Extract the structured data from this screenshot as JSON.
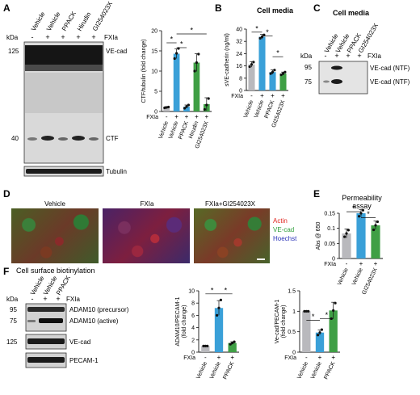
{
  "panels": {
    "A": {
      "letter": "A",
      "blot_lanes": [
        "Vehicle",
        "Vehicle",
        "PPACK",
        "Hirudin",
        "GI254023X"
      ],
      "kda_label": "kDa",
      "fxia_label": "FXIa",
      "fxia_signs": [
        "-",
        "+",
        "+",
        "+",
        "+"
      ],
      "markers": [
        "125",
        "40"
      ],
      "band_labels": [
        "VE-cad",
        "CTF",
        "Tubulin"
      ],
      "chart_data": {
        "type": "bar",
        "ylabel": "CTF/tubulin (fold change)",
        "ylim": [
          0,
          20
        ],
        "yticks": [
          "0",
          "5",
          "10",
          "15",
          "20"
        ],
        "categories": [
          "Vehicle",
          "Vehicle",
          "PPACK",
          "Hirudin",
          "GI254023X"
        ],
        "values": [
          1,
          14.3,
          1.2,
          12.1,
          1.8
        ],
        "errors": [
          0.2,
          1.2,
          0.4,
          2.2,
          1.6
        ],
        "points": [
          [
            0.9,
            1.0,
            1.1
          ],
          [
            13.1,
            14.4,
            15.6
          ],
          [
            0.8,
            1.2,
            1.6
          ],
          [
            10.0,
            12.1,
            14.2
          ],
          [
            0.5,
            1.6,
            3.2
          ]
        ],
        "colors": [
          "#b9b9bd",
          "#3aa0d8",
          "#3aa0d8",
          "#3f9f45",
          "#3f9f45"
        ],
        "fxia_signs": [
          "-",
          "+",
          "+",
          "+",
          "+"
        ],
        "significance": [
          "*",
          "*",
          "*"
        ]
      }
    },
    "B": {
      "letter": "B",
      "title": "Cell media",
      "fxia_label": "FXIa",
      "chart_data": {
        "type": "bar",
        "ylabel": "sVE-cadherin (ng/ml)",
        "ylim": [
          0,
          40
        ],
        "yticks": [
          "0",
          "8",
          "16",
          "24",
          "32",
          "40"
        ],
        "categories": [
          "Vehicle",
          "Vehicle",
          "PPACK",
          "GI254023X"
        ],
        "values": [
          17,
          35,
          12,
          11
        ],
        "errors": [
          1.8,
          1.5,
          1.4,
          1.0
        ],
        "points": [
          [
            15.5,
            17,
            18.5
          ],
          [
            34,
            35,
            36.2
          ],
          [
            11,
            12,
            13.3
          ],
          [
            10.2,
            11,
            12
          ]
        ],
        "colors": [
          "#b9b9bd",
          "#3aa0d8",
          "#3aa0d8",
          "#3f9f45"
        ],
        "fxia_signs": [
          "-",
          "+",
          "+",
          "+"
        ],
        "significance": [
          "*",
          "*"
        ]
      }
    },
    "C": {
      "letter": "C",
      "title": "Cell media",
      "kda_label": "kDa",
      "fxia_label": "FXIa",
      "blot_lanes": [
        "Vehicle",
        "Vehicle",
        "PPACK",
        "GI254023X"
      ],
      "fxia_signs": [
        "-",
        "+",
        "+",
        "+"
      ],
      "markers": [
        "95",
        "75"
      ],
      "band_labels": [
        "VE-cad (NTF)",
        "VE-cad (NTF)"
      ]
    },
    "D": {
      "letter": "D",
      "image_titles": [
        "Vehicle",
        "FXIa",
        "FXIa+GI254023X"
      ],
      "legend": [
        "Actin",
        "VE-cad",
        "Hoechst"
      ],
      "legend_colors": [
        "#e0251f",
        "#2f9e3b",
        "#2b33b8"
      ]
    },
    "E": {
      "letter": "E",
      "title": "Permeability assay",
      "fxia_label": "FXIa",
      "chart_data": {
        "type": "bar",
        "ylabel": "Abs @ 650",
        "ylim": [
          0,
          0.15
        ],
        "yticks": [
          "0",
          "0.05",
          "0.1",
          "0.15"
        ],
        "categories": [
          "Vehicle",
          "Vehicle",
          "GI254023X"
        ],
        "values": [
          0.083,
          0.15,
          0.11
        ],
        "errors": [
          0.015,
          0.012,
          0.014
        ],
        "points": [
          [
            0.072,
            0.083,
            0.094
          ],
          [
            0.14,
            0.15,
            0.16
          ],
          [
            0.095,
            0.11,
            0.122
          ]
        ],
        "colors": [
          "#b9b9bd",
          "#3aa0d8",
          "#3f9f45"
        ],
        "fxia_signs": [
          "-",
          "+",
          "+"
        ],
        "significance": [
          "*",
          "*"
        ]
      }
    },
    "F": {
      "letter": "F",
      "title": "Cell surface biotinylation",
      "kda_label": "kDa",
      "fxia_label": "FXIa",
      "blot_lanes": [
        "Vehicle",
        "Vehicle",
        "PPACK"
      ],
      "fxia_signs": [
        "-",
        "+",
        "+"
      ],
      "markers": [
        "95",
        "75",
        "125"
      ],
      "band_labels": [
        "ADAM10 (precursor)",
        "ADAM10 (active)",
        "VE-cad",
        "PECAM-1"
      ],
      "charts": [
        {
          "type": "bar",
          "ylabel": "ADAM10/PECAM-1 (fold change)",
          "ylim": [
            0,
            10
          ],
          "yticks": [
            "0",
            "2",
            "4",
            "6",
            "8",
            "10"
          ],
          "categories": [
            "Vehicle",
            "Vehicle",
            "PPACK"
          ],
          "values": [
            1,
            7.2,
            1.5
          ],
          "errors": [
            0.05,
            1.2,
            0.2
          ],
          "points": [
            [
              1,
              1,
              1
            ],
            [
              6.0,
              7.2,
              8.5
            ],
            [
              1.3,
              1.5,
              1.7
            ]
          ],
          "colors": [
            "#b9b9bd",
            "#3aa0d8",
            "#3f9f45"
          ],
          "fxia_signs": [
            "-",
            "+",
            "+"
          ],
          "significance": [
            "*",
            "*"
          ]
        },
        {
          "type": "bar",
          "ylabel": "Ve-cad/PECAM-1 (fold change)",
          "ylim": [
            0,
            1.5
          ],
          "yticks": [
            "0",
            "0.5",
            "1",
            "1.5"
          ],
          "categories": [
            "Vehicle",
            "Vehicle",
            "PPACK"
          ],
          "values": [
            1,
            0.48,
            1.02
          ],
          "errors": [
            0.01,
            0.06,
            0.2
          ],
          "points": [
            [
              1,
              1,
              1
            ],
            [
              0.42,
              0.48,
              0.55
            ],
            [
              0.82,
              1.02,
              1.2
            ]
          ],
          "colors": [
            "#b9b9bd",
            "#3aa0d8",
            "#3f9f45"
          ],
          "fxia_signs": [
            "-",
            "+",
            "+"
          ],
          "significance": [
            "*",
            "*"
          ]
        }
      ]
    }
  }
}
